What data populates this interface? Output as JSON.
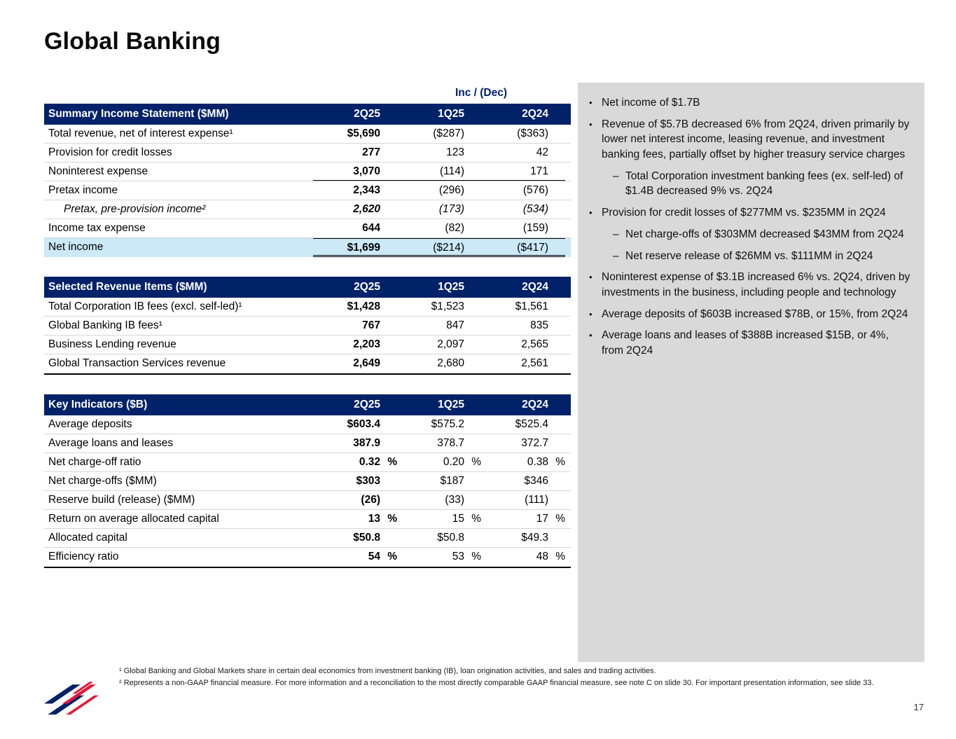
{
  "slide": {
    "title": "Global Banking",
    "page_number": "17"
  },
  "colors": {
    "navy": "#012169",
    "highlight-blue": "#cce9f8",
    "panel-gray": "#d9d9d9",
    "logo-red": "#e31837",
    "logo-blue": "#012169"
  },
  "tables": [
    {
      "inc_dec_label": "Inc / (Dec)",
      "title": "Summary Income Statement ($MM)",
      "columns": [
        "2Q25",
        "1Q25",
        "2Q24"
      ],
      "rows": [
        {
          "label": "Total revenue, net of interest expense¹",
          "values": [
            "$5,690",
            "($287)",
            "($363)"
          ]
        },
        {
          "label": "Provision for credit losses",
          "values": [
            "277",
            "123",
            "42"
          ]
        },
        {
          "label": "Noninterest expense",
          "values": [
            "3,070",
            "(114)",
            "171"
          ],
          "rule_below": true
        },
        {
          "label": "Pretax income",
          "values": [
            "2,343",
            "(296)",
            "(576)"
          ]
        },
        {
          "label": "Pretax, pre-provision income²",
          "values": [
            "2,620",
            "(173)",
            "(534)"
          ],
          "italic": true,
          "indent": true
        },
        {
          "label": "Income tax expense",
          "values": [
            "644",
            "(82)",
            "(159)"
          ]
        },
        {
          "label": "Net income",
          "values": [
            "$1,699",
            "($214)",
            "($417)"
          ],
          "highlight": true,
          "total": true
        }
      ]
    },
    {
      "title": "Selected Revenue Items ($MM)",
      "columns": [
        "2Q25",
        "1Q25",
        "2Q24"
      ],
      "rows": [
        {
          "label": "Total Corporation IB fees (excl. self-led)¹",
          "values": [
            "$1,428",
            "$1,523",
            "$1,561"
          ]
        },
        {
          "label": "Global Banking IB fees¹",
          "values": [
            "767",
            "847",
            "835"
          ]
        },
        {
          "label": "Business Lending revenue",
          "values": [
            "2,203",
            "2,097",
            "2,565"
          ]
        },
        {
          "label": "Global Transaction Services revenue",
          "values": [
            "2,649",
            "2,680",
            "2,561"
          ]
        }
      ]
    },
    {
      "title": "Key Indicators ($B)",
      "columns": [
        "2Q25",
        "1Q25",
        "2Q24"
      ],
      "rows": [
        {
          "label": "Average deposits",
          "values": [
            "$603.4",
            "$575.2",
            "$525.4"
          ]
        },
        {
          "label": "Average loans and leases",
          "values": [
            "387.9",
            "378.7",
            "372.7"
          ]
        },
        {
          "label": "Net charge-off ratio",
          "values": [
            "0.32",
            "0.20",
            "0.38"
          ],
          "unit": "%"
        },
        {
          "label": "Net charge-offs ($MM)",
          "values": [
            "$303",
            "$187",
            "$346"
          ]
        },
        {
          "label": "Reserve build (release) ($MM)",
          "values": [
            "(26)",
            "(33)",
            "(111)"
          ]
        },
        {
          "label": "Return on average allocated capital",
          "values": [
            "13",
            "15",
            "17"
          ],
          "unit": "%"
        },
        {
          "label": "Allocated capital",
          "values": [
            "$50.8",
            "$50.8",
            "$49.3"
          ]
        },
        {
          "label": "Efficiency ratio",
          "values": [
            "54",
            "53",
            "48"
          ],
          "unit": "%"
        }
      ]
    }
  ],
  "commentary": {
    "bullets": [
      {
        "level": 1,
        "text": "Net income of $1.7B"
      },
      {
        "level": 1,
        "text": "Revenue of $5.7B decreased 6% from 2Q24, driven primarily by lower net interest income, leasing revenue, and investment banking fees, partially offset by higher treasury service charges"
      },
      {
        "level": 2,
        "text": "Total Corporation investment banking fees (ex. self-led) of $1.4B decreased 9% vs. 2Q24"
      },
      {
        "level": 1,
        "text": "Provision for credit losses of $277MM vs. $235MM in 2Q24"
      },
      {
        "level": 2,
        "text": "Net charge-offs of $303MM decreased $43MM from 2Q24"
      },
      {
        "level": 2,
        "text": "Net reserve release of $26MM vs. $111MM in 2Q24"
      },
      {
        "level": 1,
        "text": "Noninterest expense of $3.1B increased 6% vs. 2Q24, driven by investments in the business, including people and technology"
      },
      {
        "level": 1,
        "text": "Average deposits of $603B increased $78B, or 15%, from 2Q24"
      },
      {
        "level": 1,
        "text": "Average loans and leases of $388B increased $15B, or 4%, from 2Q24"
      }
    ]
  },
  "footnotes": [
    "¹ Global Banking and Global Markets share in certain deal economics from investment banking (IB), loan origination activities, and sales and trading activities.",
    "² Represents a non-GAAP financial measure. For more information and a reconciliation to the most directly comparable GAAP financial measure, see note C on slide 30. For important presentation information, see slide 33."
  ]
}
